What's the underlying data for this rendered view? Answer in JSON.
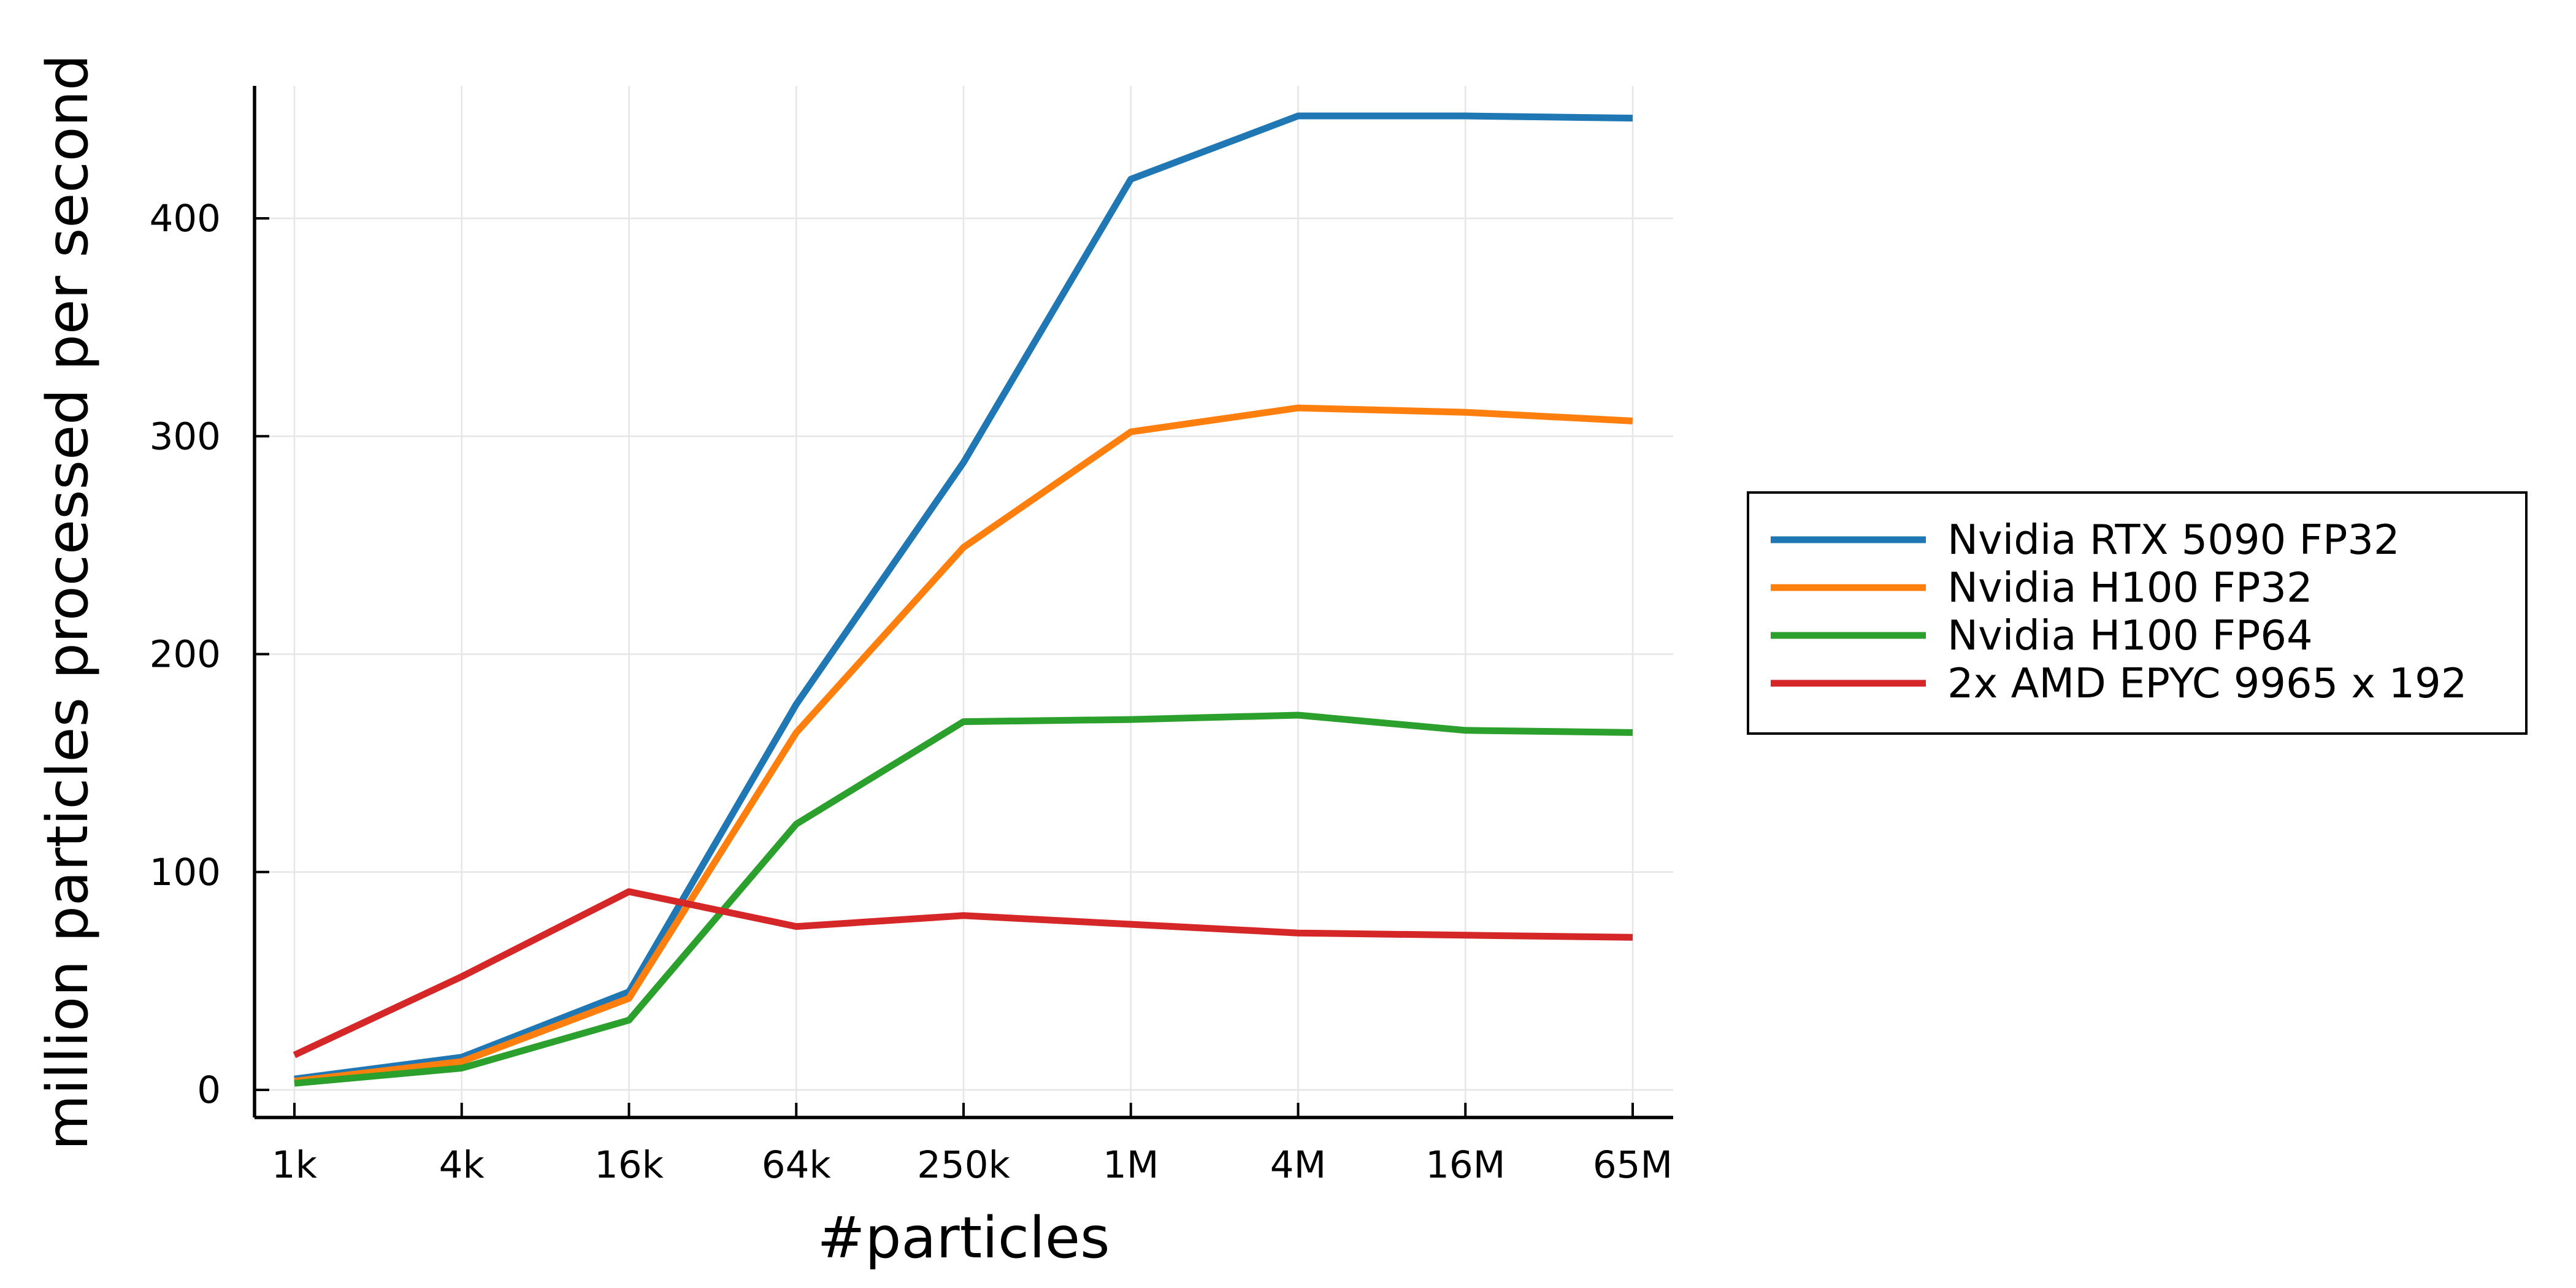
{
  "chart_data": {
    "type": "line",
    "xlabel": "#particles",
    "ylabel": "million particles processed per second",
    "categories": [
      "1k",
      "4k",
      "16k",
      "64k",
      "250k",
      "1M",
      "4M",
      "16M",
      "65M"
    ],
    "yticks": [
      0,
      100,
      200,
      300,
      400
    ],
    "ylim": [
      -12,
      460
    ],
    "grid": true,
    "legend_position": "right",
    "series": [
      {
        "name": "Nvidia RTX 5090 FP32",
        "color": "#1f77b4",
        "values": [
          5,
          15,
          45,
          177,
          288,
          418,
          447,
          447,
          446
        ]
      },
      {
        "name": "Nvidia H100 FP32",
        "color": "#ff7f0e",
        "values": [
          4,
          13,
          42,
          164,
          249,
          302,
          313,
          311,
          307
        ]
      },
      {
        "name": "Nvidia H100 FP64",
        "color": "#2ca02c",
        "values": [
          3,
          10,
          32,
          122,
          169,
          170,
          172,
          165,
          164
        ]
      },
      {
        "name": "2x AMD EPYC 9965 x 192",
        "color": "#d62728",
        "values": [
          16,
          52,
          91,
          75,
          80,
          76,
          72,
          71,
          70
        ]
      }
    ]
  }
}
